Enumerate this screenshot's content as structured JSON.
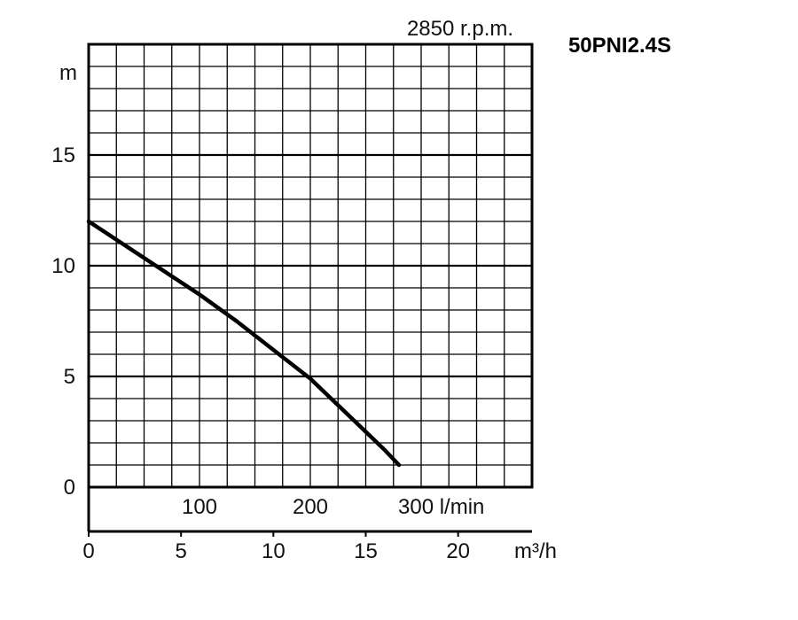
{
  "chart_data": {
    "type": "line",
    "title": "2850 r.p.m.",
    "model": "50PNI2.4S",
    "ylabel": "m",
    "ylim": [
      0,
      20
    ],
    "yticks": [
      "0",
      "5",
      "10",
      "15"
    ],
    "xlabel_m3h": "m³/h",
    "xlim_m3h": [
      0,
      24
    ],
    "xticks_m3h": [
      "0",
      "5",
      "10",
      "15",
      "20"
    ],
    "xticks_lmin": [
      "100",
      "200",
      "300 l/min"
    ],
    "xticks_lmin_values": [
      100,
      200,
      300
    ],
    "grid": true,
    "series": [
      {
        "x": [
          0,
          2,
          4,
          6,
          8,
          10,
          12,
          14,
          16,
          16.8
        ],
        "y": [
          12,
          10.9,
          9.8,
          8.7,
          7.5,
          6.2,
          4.9,
          3.3,
          1.7,
          1.0
        ]
      }
    ]
  }
}
